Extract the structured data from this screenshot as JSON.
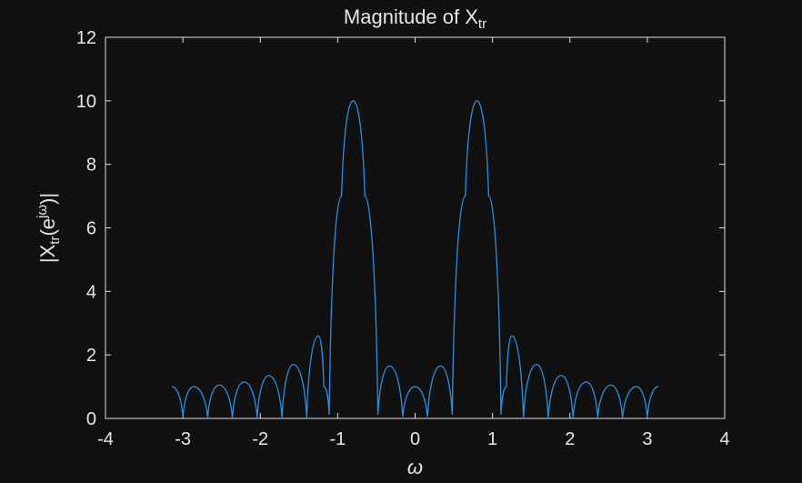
{
  "chart_data": {
    "type": "line",
    "title": {
      "main": "Magnitude of X",
      "sub": "tr"
    },
    "xlabel": "ω",
    "ylabel": {
      "pre": "|X",
      "sub": "tr",
      "mid": "(e",
      "sup": "jω",
      "post": ")|"
    },
    "xlim": [
      -4,
      4
    ],
    "ylim": [
      0,
      12
    ],
    "xticks": [
      "-4",
      "-3",
      "-2",
      "-1",
      "0",
      "1",
      "2",
      "3",
      "4"
    ],
    "yticks": [
      "0",
      "2",
      "4",
      "6",
      "8",
      "10",
      "12"
    ],
    "grid": false,
    "series": [
      {
        "color": "#2f8fe0",
        "x": [
          -3.1416,
          -3.0,
          -2.86,
          -2.68,
          -2.53,
          -2.36,
          -2.21,
          -2.04,
          -1.89,
          -1.72,
          -1.57,
          -1.4,
          -1.25,
          -1.18,
          -1.11,
          -0.95,
          -0.8,
          -0.65,
          -0.48,
          -0.33,
          -0.16,
          0.0,
          0.16,
          0.33,
          0.48,
          0.65,
          0.8,
          0.95,
          1.11,
          1.18,
          1.25,
          1.4,
          1.57,
          1.72,
          1.89,
          2.04,
          2.21,
          2.36,
          2.53,
          2.68,
          2.86,
          3.0,
          3.1416
        ],
        "values": [
          1.0,
          0.03,
          1.0,
          0.03,
          1.05,
          0.03,
          1.15,
          0.03,
          1.35,
          0.03,
          1.7,
          0.03,
          2.6,
          1.0,
          0.12,
          7.0,
          10.0,
          7.0,
          0.12,
          1.65,
          0.05,
          1.0,
          0.05,
          1.65,
          0.12,
          7.0,
          10.0,
          7.0,
          0.12,
          1.0,
          2.6,
          0.03,
          1.7,
          0.03,
          1.35,
          0.03,
          1.15,
          0.03,
          1.05,
          0.03,
          1.0,
          0.03,
          1.0
        ]
      }
    ]
  },
  "colors": {
    "background": "#111111",
    "axes": "#e0e0e0",
    "line": "#2f8fe0"
  }
}
